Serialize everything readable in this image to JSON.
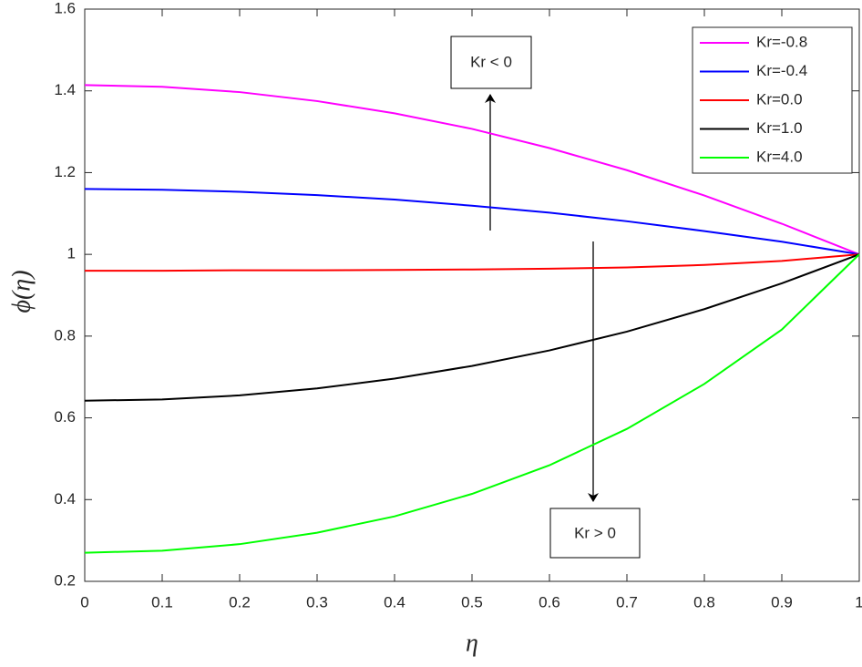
{
  "chart_data": {
    "type": "line",
    "x": [
      0,
      0.1,
      0.2,
      0.3,
      0.4,
      0.5,
      0.6,
      0.7,
      0.8,
      0.9,
      1
    ],
    "series": [
      {
        "name": "Kr=-0.8",
        "color": "#ff00ff",
        "values": [
          1.414,
          1.41,
          1.397,
          1.375,
          1.345,
          1.307,
          1.26,
          1.206,
          1.144,
          1.075,
          1.0
        ]
      },
      {
        "name": "Kr=-0.4",
        "color": "#0000ff",
        "values": [
          1.16,
          1.158,
          1.153,
          1.145,
          1.134,
          1.119,
          1.102,
          1.081,
          1.057,
          1.031,
          1.0
        ]
      },
      {
        "name": "Kr=0.0",
        "color": "#ff0000",
        "values": [
          0.96,
          0.96,
          0.961,
          0.961,
          0.962,
          0.963,
          0.965,
          0.968,
          0.974,
          0.984,
          1.0
        ]
      },
      {
        "name": "Kr=1.0",
        "color": "#000000",
        "values": [
          0.642,
          0.645,
          0.655,
          0.672,
          0.696,
          0.727,
          0.765,
          0.811,
          0.866,
          0.929,
          1.0
        ]
      },
      {
        "name": "Kr=4.0",
        "color": "#00ff00",
        "values": [
          0.27,
          0.275,
          0.291,
          0.319,
          0.359,
          0.414,
          0.484,
          0.573,
          0.683,
          0.816,
          1.0
        ]
      }
    ],
    "x_label": "η",
    "y_label": "ϕ(η)",
    "xlim": [
      0,
      1
    ],
    "xticks": [
      0,
      0.1,
      0.2,
      0.3,
      0.4,
      0.5,
      0.6,
      0.7,
      0.8,
      0.9,
      1
    ],
    "ylim": [
      0.2,
      1.6
    ],
    "yticks": [
      0.2,
      0.4,
      0.6,
      0.8,
      1,
      1.2,
      1.4,
      1.6
    ],
    "grid": false,
    "legend": "upper right",
    "annotations": [
      "Kr < 0",
      "Kr > 0"
    ]
  }
}
